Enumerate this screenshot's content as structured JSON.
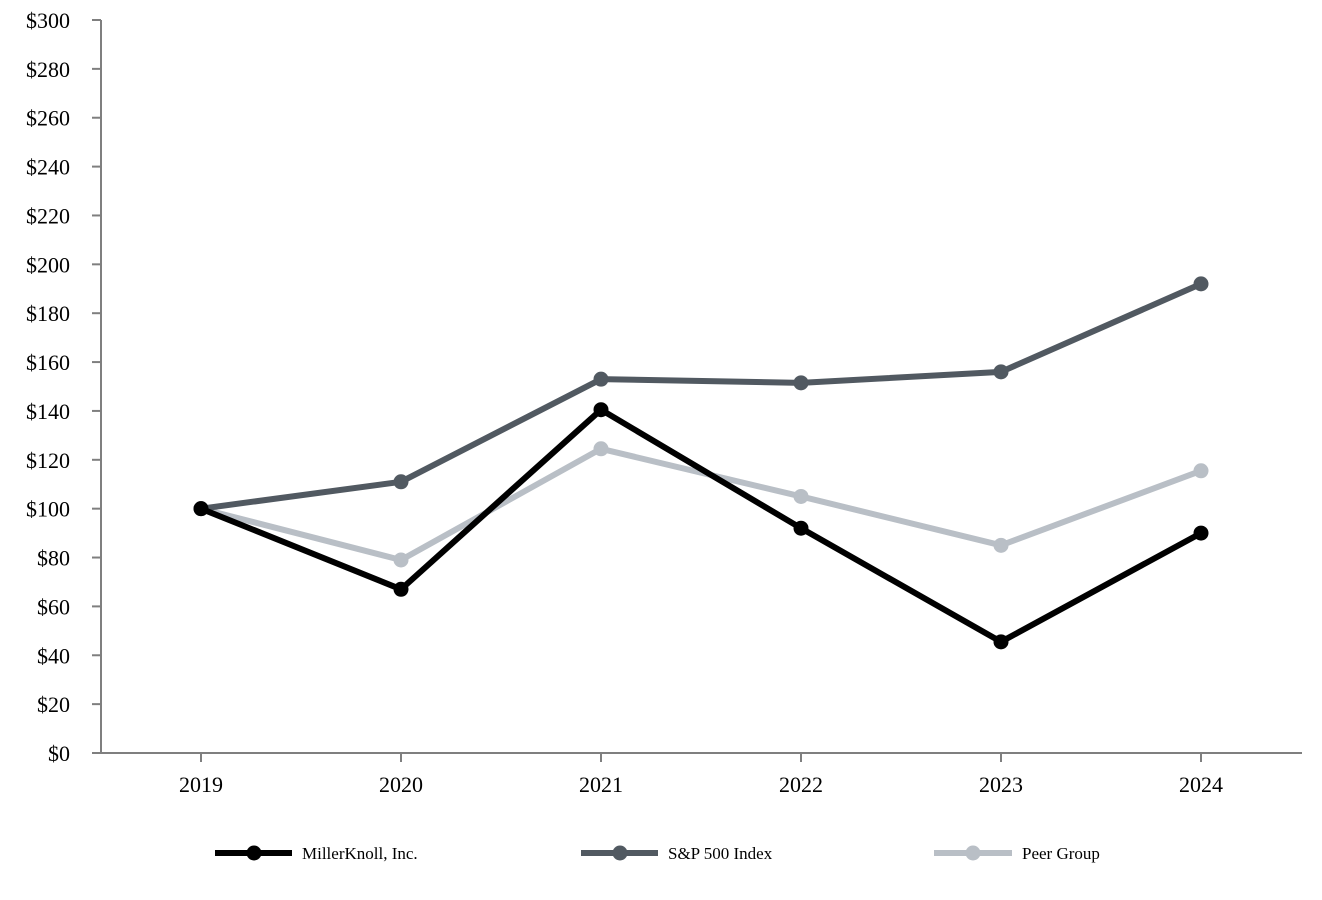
{
  "chart_data": {
    "type": "line",
    "categories": [
      "2019",
      "2020",
      "2021",
      "2022",
      "2023",
      "2024"
    ],
    "ylim": [
      0,
      300
    ],
    "ytick_step": 20,
    "ytick_prefix": "$",
    "grid": false,
    "legend_position": "bottom",
    "series": [
      {
        "name": "MillerKnoll, Inc.",
        "color": "#000000",
        "values": [
          100,
          67,
          140.5,
          92,
          45.5,
          90
        ]
      },
      {
        "name": "S&P 500 Index",
        "color": "#515961",
        "values": [
          100,
          111,
          153,
          151.5,
          156,
          192
        ]
      },
      {
        "name": "Peer Group",
        "color": "#b9bfc6",
        "values": [
          100,
          79,
          124.5,
          105,
          85,
          115.5
        ]
      }
    ]
  }
}
